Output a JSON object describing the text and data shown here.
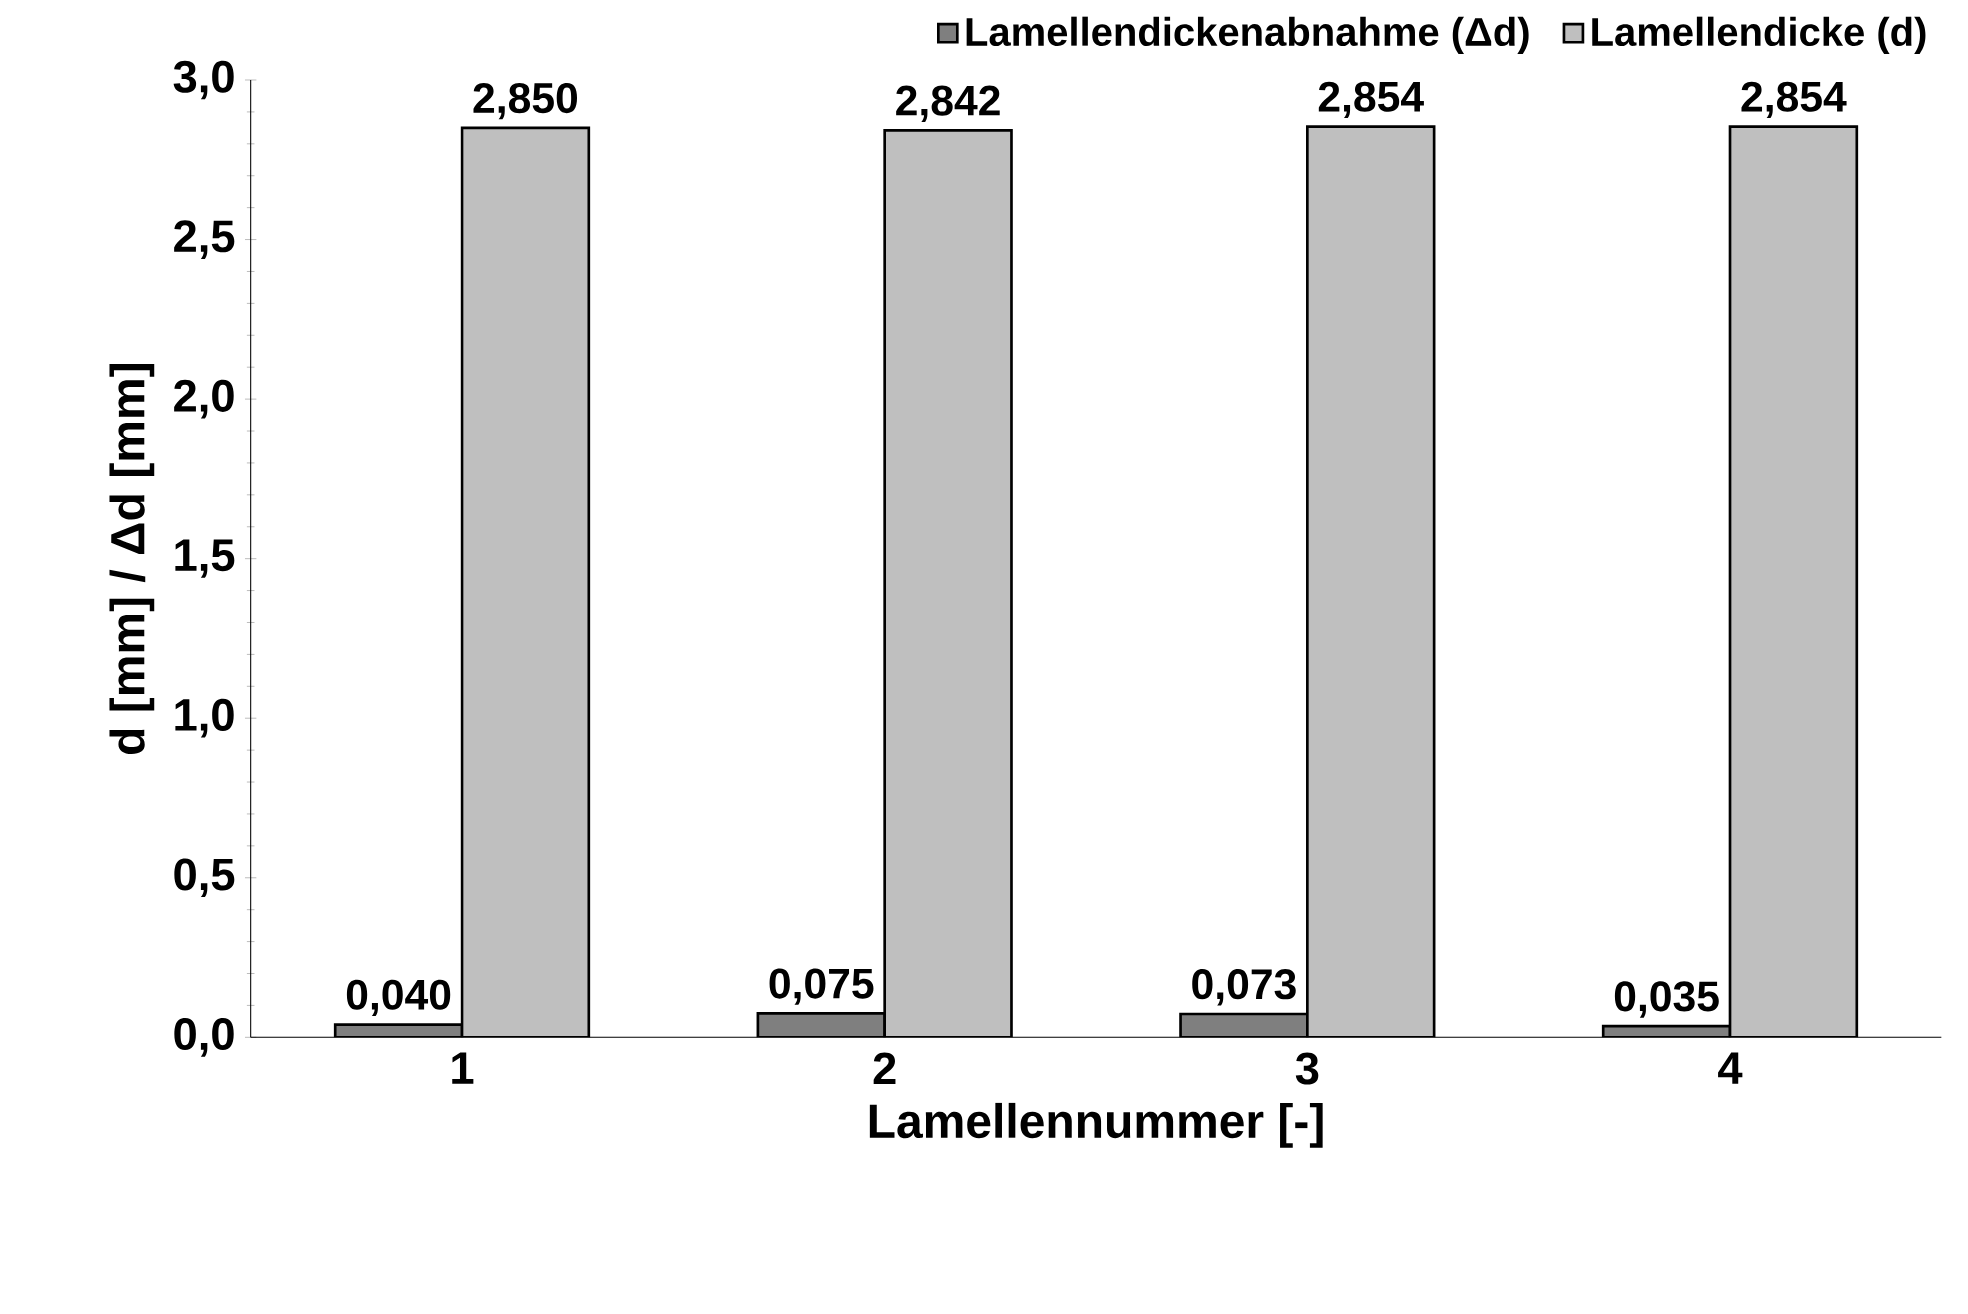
{
  "chart_data": {
    "type": "bar",
    "xlabel": "Lamellennummer  [-]",
    "ylabel": "d  [mm] / Δd [mm]",
    "categories": [
      "1",
      "2",
      "3",
      "4"
    ],
    "series": [
      {
        "name": "Lamellendickenabnahme (Δd)",
        "color": "#7f7f7f",
        "values": [
          0.04,
          0.075,
          0.073,
          0.035
        ],
        "value_labels": [
          "0,040",
          "0,075",
          "0,073",
          "0,035"
        ]
      },
      {
        "name": "Lamellendicke (d)",
        "color": "#bfbfbf",
        "values": [
          2.85,
          2.842,
          2.854,
          2.854
        ],
        "value_labels": [
          "2,850",
          "2,842",
          "2,854",
          "2,854"
        ]
      }
    ],
    "ylim": [
      0,
      3
    ],
    "yticks": [
      {
        "value": 0,
        "label": "0,0"
      },
      {
        "value": 0.5,
        "label": "0,5"
      },
      {
        "value": 1,
        "label": "1,0"
      },
      {
        "value": 1.5,
        "label": "1,5"
      },
      {
        "value": 2,
        "label": "2,0"
      },
      {
        "value": 2.5,
        "label": "2,5"
      },
      {
        "value": 3,
        "label": "3,0"
      }
    ],
    "legend": "top right"
  }
}
